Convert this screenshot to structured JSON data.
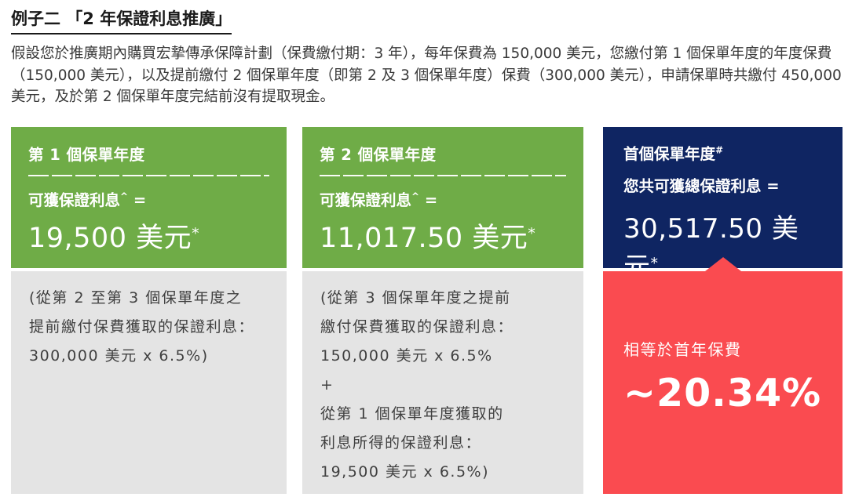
{
  "title": "例子二 「2 年保證利息推廣」",
  "intro": "假設您於推廣期內購買宏摯傳承保障計劃（保費繳付期：3 年），每年保費為 150,000 美元，您繳付第 1 個保單年度的年度保費（150,000 美元），以及提前繳付 2 個保單年度（即第 2 及 3 個保單年度）保費（300,000 美元），申請保單時共繳付 450,000 美元，及於第 2 個保單年度完結前沒有提取現金。",
  "colors": {
    "green": "#6FAC47",
    "navy": "#0F2562",
    "coral": "#FA4B50",
    "gray": "#E4E4E4"
  },
  "columns": [
    {
      "header": "第 1 個保單年度",
      "interest_label": "可獲保證利息",
      "interest_sup": "^",
      "equals": " =",
      "amount": "19,500 美元",
      "amount_sup": "*",
      "details": [
        "(從第 2 至第 3 個保單年度之",
        "提前繳付保費獲取的保證利息：",
        "300,000 美元 x 6.5%)"
      ]
    },
    {
      "header": "第 2 個保單年度",
      "interest_label": "可獲保證利息",
      "interest_sup": "^",
      "equals": " =",
      "amount": "11,017.50 美元",
      "amount_sup": "*",
      "details": [
        "(從第 3 個保單年度之提前",
        "繳付保費獲取的保證利息：",
        "150,000 美元 x 6.5%",
        "+",
        "從第 1 個保單年度獲取的",
        "利息所得的保證利息：",
        "19,500 美元 x 6.5%)"
      ]
    }
  ],
  "summary": {
    "header": "首個保單年度",
    "header_sup": "#",
    "total_label": "您共可獲總保證利息 =",
    "amount": "30,517.50 美元",
    "amount_sup": "*",
    "highlight_label": "相等於首年保費",
    "highlight_value": "~20.34%"
  }
}
